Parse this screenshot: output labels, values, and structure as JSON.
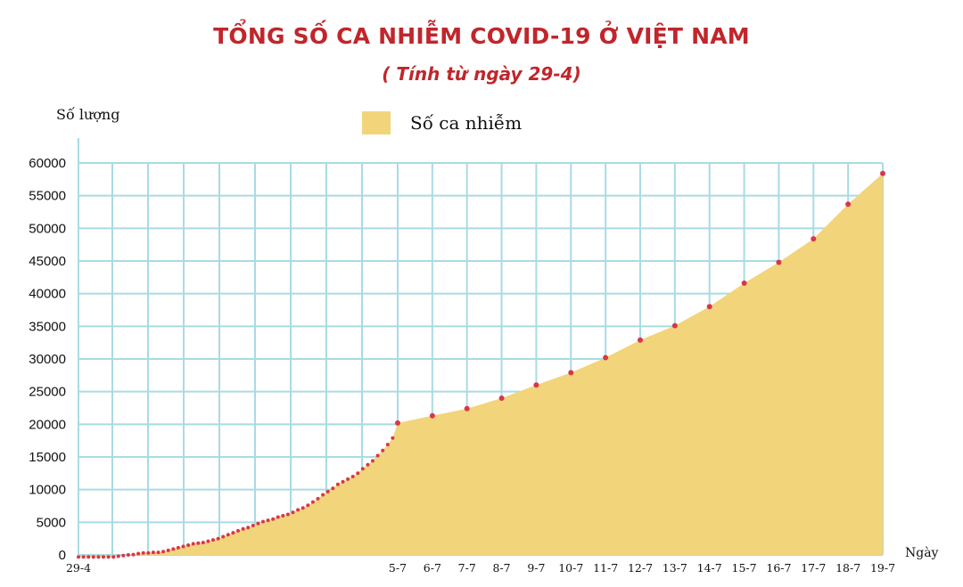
{
  "chart_data": {
    "type": "area",
    "title": "TỔNG SỐ CA NHIỄM COVID-19 Ở VIỆT NAM",
    "subtitle": "( Tính từ ngày 29-4)",
    "ylabel": "Số lượng",
    "xlabel": "Ngày",
    "ylim": [
      0,
      60000
    ],
    "yticks": [
      0,
      5000,
      10000,
      15000,
      20000,
      25000,
      30000,
      35000,
      40000,
      45000,
      50000,
      55000,
      60000
    ],
    "xtick_labels": [
      "29-4",
      "5-7",
      "6-7",
      "7-7",
      "8-7",
      "9-7",
      "10-7",
      "11-7",
      "12-7",
      "13-7",
      "14-7",
      "15-7",
      "16-7",
      "17-7",
      "18-7",
      "19-7"
    ],
    "grid": true,
    "legend": "top-center",
    "series": [
      {
        "name": "Số ca nhiễm",
        "color": "#f2d47a",
        "marker_color": "#d9364a",
        "points": [
          [
            "29-4",
            -300
          ],
          [
            "30-4",
            -300
          ],
          [
            "1-5",
            -300
          ],
          [
            "2-5",
            -300
          ],
          [
            "3-5",
            -300
          ],
          [
            "4-5",
            -300
          ],
          [
            "5-5",
            -300
          ],
          [
            "6-5",
            -300
          ],
          [
            "7-5",
            -200
          ],
          [
            "8-5",
            -100
          ],
          [
            "9-5",
            0
          ],
          [
            "10-5",
            50
          ],
          [
            "11-5",
            200
          ],
          [
            "12-5",
            300
          ],
          [
            "13-5",
            300
          ],
          [
            "14-5",
            400
          ],
          [
            "15-5",
            400
          ],
          [
            "16-5",
            500
          ],
          [
            "17-5",
            700
          ],
          [
            "18-5",
            900
          ],
          [
            "19-5",
            1100
          ],
          [
            "20-5",
            1300
          ],
          [
            "21-5",
            1500
          ],
          [
            "22-5",
            1700
          ],
          [
            "23-5",
            1800
          ],
          [
            "24-5",
            1900
          ],
          [
            "25-5",
            2100
          ],
          [
            "26-5",
            2300
          ],
          [
            "27-5",
            2500
          ],
          [
            "28-5",
            2800
          ],
          [
            "29-5",
            3100
          ],
          [
            "30-5",
            3400
          ],
          [
            "31-5",
            3700
          ],
          [
            "1-6",
            4000
          ],
          [
            "2-6",
            4200
          ],
          [
            "3-6",
            4500
          ],
          [
            "4-6",
            4800
          ],
          [
            "5-6",
            5100
          ],
          [
            "6-6",
            5300
          ],
          [
            "7-6",
            5500
          ],
          [
            "8-6",
            5800
          ],
          [
            "9-6",
            6000
          ],
          [
            "10-6",
            6200
          ],
          [
            "11-6",
            6500
          ],
          [
            "12-6",
            6900
          ],
          [
            "13-6",
            7200
          ],
          [
            "14-6",
            7600
          ],
          [
            "15-6",
            8100
          ],
          [
            "16-6",
            8600
          ],
          [
            "17-6",
            9200
          ],
          [
            "18-6",
            9700
          ],
          [
            "19-6",
            10200
          ],
          [
            "20-6",
            10800
          ],
          [
            "21-6",
            11200
          ],
          [
            "22-6",
            11600
          ],
          [
            "23-6",
            12000
          ],
          [
            "24-6",
            12500
          ],
          [
            "25-6",
            13200
          ],
          [
            "26-6",
            13800
          ],
          [
            "27-6",
            14400
          ],
          [
            "28-6",
            15200
          ],
          [
            "29-6",
            16000
          ],
          [
            "30-6",
            16900
          ],
          [
            "1-7",
            17900
          ],
          [
            "5-7",
            20200
          ],
          [
            "6-7",
            21300
          ],
          [
            "7-7",
            22400
          ],
          [
            "8-7",
            24000
          ],
          [
            "9-7",
            26000
          ],
          [
            "10-7",
            27900
          ],
          [
            "11-7",
            30200
          ],
          [
            "12-7",
            32900
          ],
          [
            "13-7",
            35100
          ],
          [
            "14-7",
            38000
          ],
          [
            "15-7",
            41600
          ],
          [
            "16-7",
            44800
          ],
          [
            "17-7",
            48400
          ],
          [
            "18-7",
            53700
          ],
          [
            "19-7",
            58400
          ]
        ]
      }
    ]
  }
}
